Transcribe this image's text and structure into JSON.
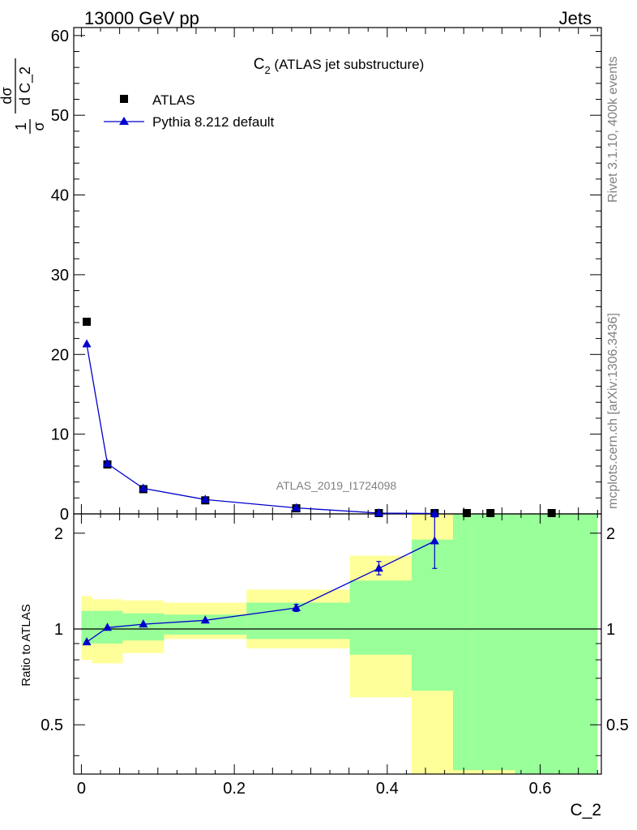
{
  "header": {
    "left": "13000 GeV pp",
    "right": "Jets"
  },
  "side_text": {
    "top": "Rivet 3.1.10,  400k events",
    "bottom": "mcplots.cern.ch [arXiv:1306.3436]"
  },
  "watermark": "ATLAS_2019_I1724098",
  "chart_data": [
    {
      "type": "scatter",
      "panel": "main",
      "title_parts": [
        "C",
        "2",
        " (ATLAS jet substructure)"
      ],
      "ylabel_parts": [
        "1",
        "σ",
        "dσ",
        "d C_2"
      ],
      "ylim": [
        0,
        61
      ],
      "xlim": [
        -0.01,
        0.68
      ],
      "yticks": [
        0,
        10,
        20,
        30,
        40,
        50,
        60
      ],
      "legend": {
        "position": "top-left",
        "entries": [
          "ATLAS",
          "Pythia 8.212 default"
        ]
      },
      "series": [
        {
          "name": "ATLAS",
          "marker": "square",
          "color": "#000000",
          "x": [
            0.007,
            0.034,
            0.081,
            0.162,
            0.281,
            0.389,
            0.462,
            0.504,
            0.535,
            0.615
          ],
          "y": [
            24.1,
            6.2,
            3.1,
            1.7,
            0.7,
            0.1,
            0.05,
            0.03,
            0.03,
            0.02
          ]
        },
        {
          "name": "Pythia 8.212 default",
          "marker": "triangle",
          "color": "#0000cc",
          "x": [
            0.007,
            0.034,
            0.081,
            0.162,
            0.281,
            0.389,
            0.462
          ],
          "y": [
            21.3,
            6.3,
            3.2,
            1.8,
            0.75,
            0.1,
            0.05
          ]
        }
      ]
    },
    {
      "type": "scatter",
      "panel": "ratio",
      "ylabel": "Ratio to ATLAS",
      "xlabel": "C_2",
      "ylim": [
        0.35,
        2.3
      ],
      "xlim": [
        -0.01,
        0.68
      ],
      "yscale": "log",
      "xticks": [
        0,
        0.2,
        0.4,
        0.6
      ],
      "xtick_labels": [
        "0",
        "0.2",
        "0.4",
        "0.6"
      ],
      "yticks": [
        0.5,
        1,
        2
      ],
      "ytick_labels": [
        "0.5",
        "1",
        "2"
      ],
      "reference_line": 1,
      "bands": {
        "x_edges": [
          0,
          0.014,
          0.054,
          0.108,
          0.216,
          0.351,
          0.432,
          0.486,
          0.509,
          0.567,
          0.675
        ],
        "yellow_low": [
          0.8,
          0.78,
          0.84,
          0.93,
          0.87,
          0.61,
          0.3,
          0.3,
          0.3,
          0.3
        ],
        "yellow_high": [
          1.27,
          1.24,
          1.23,
          1.21,
          1.33,
          1.7,
          2.3,
          2.3,
          2.3,
          2.3
        ],
        "green_low": [
          0.9,
          0.9,
          0.92,
          0.96,
          0.93,
          0.83,
          0.64,
          0.36,
          0.36,
          0.3
        ],
        "green_high": [
          1.14,
          1.14,
          1.12,
          1.11,
          1.21,
          1.42,
          1.91,
          2.3,
          2.3,
          2.3
        ]
      },
      "series": [
        {
          "name": "Pythia 8.212 default",
          "color": "#0000cc",
          "x": [
            0.007,
            0.034,
            0.081,
            0.162,
            0.281,
            0.389,
            0.462
          ],
          "y": [
            0.91,
            1.01,
            1.035,
            1.065,
            1.165,
            1.55,
            1.89
          ],
          "err_low": [
            0,
            0,
            0,
            0,
            0.03,
            0.07,
            0.34
          ],
          "err_high": [
            0,
            0,
            0,
            0,
            0.03,
            0.08,
            0.36
          ]
        }
      ]
    }
  ]
}
